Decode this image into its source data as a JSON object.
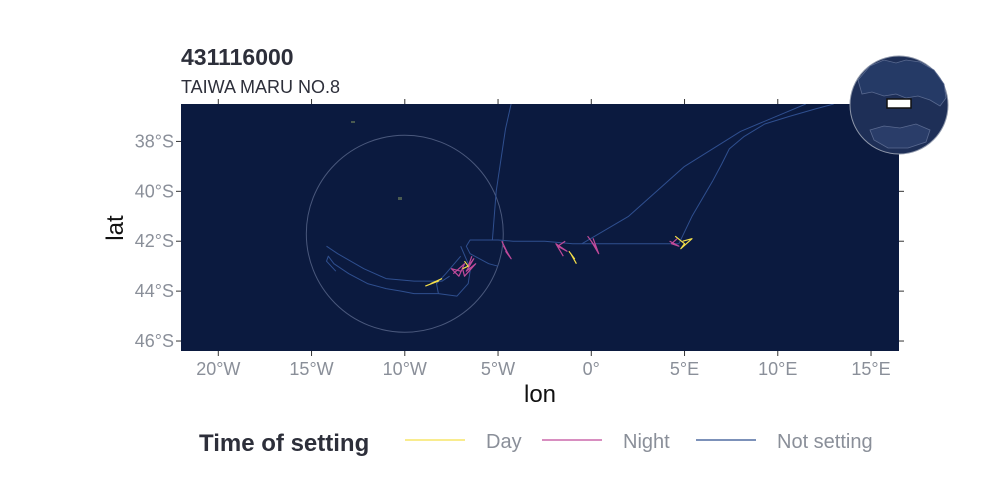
{
  "chart_data": {
    "type": "line",
    "title": "431116000",
    "subtitle": "TAIWA MARU NO.8",
    "xlabel": "lon",
    "ylabel": "lat",
    "xlim": [
      -22,
      16.5
    ],
    "ylim": [
      -46.4,
      -36.5
    ],
    "x_ticks": [
      {
        "value": -20,
        "label": "20°W"
      },
      {
        "value": -15,
        "label": "15°W"
      },
      {
        "value": -10,
        "label": "10°W"
      },
      {
        "value": -5,
        "label": "5°W"
      },
      {
        "value": 0,
        "label": "0°"
      },
      {
        "value": 5,
        "label": "5°E"
      },
      {
        "value": 10,
        "label": "10°E"
      },
      {
        "value": 15,
        "label": "15°E"
      }
    ],
    "y_ticks": [
      {
        "value": -38,
        "label": "38°S"
      },
      {
        "value": -40,
        "label": "40°S"
      },
      {
        "value": -42,
        "label": "42°S"
      },
      {
        "value": -44,
        "label": "44°S"
      },
      {
        "value": -46,
        "label": "46°S"
      }
    ],
    "background": "#0b1a3f",
    "grid": false,
    "legend": {
      "title": "Time of setting",
      "position": "bottom",
      "entries": [
        {
          "label": "Day",
          "color": "#f5e04a"
        },
        {
          "label": "Night",
          "color": "#c04a9a"
        },
        {
          "label": "Not setting",
          "color": "#2f4f8f"
        }
      ]
    },
    "eez_circle": {
      "center": [
        -10,
        -41.7
      ],
      "radius_deg": 4.8
    },
    "series": [
      {
        "name": "Not setting",
        "color": "#2f4f8f",
        "paths": [
          [
            [
              4.7,
              -42.1
            ],
            [
              5.4,
              -41.0
            ],
            [
              6.5,
              -39.6
            ],
            [
              7.0,
              -38.9
            ],
            [
              7.4,
              -38.3
            ],
            [
              8.2,
              -37.8
            ],
            [
              9.3,
              -37.3
            ],
            [
              10.6,
              -37.0
            ],
            [
              12.0,
              -36.7
            ],
            [
              13.0,
              -36.5
            ]
          ],
          [
            [
              4.7,
              -42.1
            ],
            [
              3.0,
              -42.1
            ],
            [
              1.2,
              -42.1
            ],
            [
              0.5,
              -42.1
            ],
            [
              -1.0,
              -42.1
            ],
            [
              -2.5,
              -42.0
            ],
            [
              -4.2,
              -42.0
            ],
            [
              -5.0,
              -41.95
            ],
            [
              -6.5,
              -41.95
            ],
            [
              -6.7,
              -42.2
            ],
            [
              -6.5,
              -42.5
            ],
            [
              -5.5,
              -42.9
            ],
            [
              -5.0,
              -43.0
            ]
          ],
          [
            [
              -5.3,
              -41.95
            ],
            [
              -5.1,
              -40.0
            ],
            [
              -4.6,
              -37.5
            ],
            [
              -4.3,
              -36.5
            ]
          ],
          [
            [
              -7.0,
              -42.2
            ],
            [
              -6.6,
              -42.9
            ],
            [
              -6.5,
              -43.2
            ],
            [
              -6.6,
              -43.7
            ],
            [
              -7.2,
              -44.2
            ],
            [
              -8.2,
              -44.1
            ],
            [
              -9.5,
              -44.1
            ],
            [
              -10.2,
              -44.0
            ],
            [
              -11.0,
              -43.9
            ],
            [
              -12.0,
              -43.7
            ],
            [
              -13.0,
              -43.3
            ],
            [
              -13.8,
              -42.9
            ],
            [
              -14.1,
              -42.6
            ],
            [
              -14.2,
              -42.8
            ],
            [
              -13.7,
              -43.2
            ]
          ],
          [
            [
              -14.2,
              -42.2
            ],
            [
              -13.6,
              -42.5
            ],
            [
              -12.2,
              -43.1
            ],
            [
              -11.0,
              -43.5
            ],
            [
              -9.5,
              -43.6
            ],
            [
              -8.0,
              -43.6
            ],
            [
              -7.6,
              -43.4
            ]
          ],
          [
            [
              -7.0,
              -42.6
            ],
            [
              -7.8,
              -43.3
            ],
            [
              -8.3,
              -43.7
            ],
            [
              -8.2,
              -44.1
            ]
          ],
          [
            [
              -0.5,
              -42.1
            ],
            [
              2.0,
              -41.0
            ],
            [
              5.0,
              -39.0
            ],
            [
              8.0,
              -37.6
            ],
            [
              11.5,
              -36.5
            ]
          ]
        ]
      },
      {
        "name": "Night",
        "color": "#c04a9a",
        "paths": [
          [
            [
              -6.4,
              -42.6
            ],
            [
              -6.6,
              -43.0
            ],
            [
              -6.3,
              -42.7
            ],
            [
              -6.7,
              -43.2
            ],
            [
              -6.2,
              -42.9
            ],
            [
              -6.8,
              -43.4
            ],
            [
              -6.9,
              -43.1
            ]
          ],
          [
            [
              -7.0,
              -43.2
            ],
            [
              -7.5,
              -43.1
            ],
            [
              -7.1,
              -43.4
            ],
            [
              -6.8,
              -42.9
            ],
            [
              -7.4,
              -43.3
            ]
          ],
          [
            [
              -4.8,
              -42.0
            ],
            [
              -4.4,
              -42.6
            ],
            [
              -4.7,
              -42.2
            ],
            [
              -4.3,
              -42.7
            ],
            [
              -4.6,
              -42.4
            ]
          ],
          [
            [
              -1.4,
              -42.0
            ],
            [
              -1.8,
              -42.2
            ],
            [
              -1.3,
              -42.4
            ],
            [
              -1.9,
              -42.1
            ],
            [
              -1.5,
              -42.6
            ]
          ],
          [
            [
              -0.2,
              -41.8
            ],
            [
              0.3,
              -42.3
            ],
            [
              0.1,
              -41.9
            ],
            [
              0.4,
              -42.5
            ],
            [
              0.0,
              -42.0
            ]
          ],
          [
            [
              4.6,
              -41.9
            ],
            [
              4.3,
              -42.1
            ],
            [
              4.7,
              -42.2
            ],
            [
              4.2,
              -42.0
            ]
          ]
        ]
      },
      {
        "name": "Day",
        "color": "#f5e04a",
        "paths": [
          [
            [
              -8.0,
              -43.5
            ],
            [
              -8.6,
              -43.7
            ],
            [
              -8.2,
              -43.6
            ],
            [
              -8.9,
              -43.8
            ]
          ],
          [
            [
              -1.2,
              -42.4
            ],
            [
              -0.9,
              -42.7
            ],
            [
              -1.1,
              -42.5
            ],
            [
              -0.8,
              -42.9
            ]
          ],
          [
            [
              4.5,
              -41.8
            ],
            [
              5.0,
              -42.1
            ],
            [
              4.8,
              -42.3
            ],
            [
              5.4,
              -41.9
            ],
            [
              4.9,
              -42.0
            ]
          ],
          [
            [
              -6.8,
              -42.8
            ],
            [
              -6.6,
              -43.0
            ],
            [
              -6.9,
              -43.1
            ]
          ]
        ]
      }
    ]
  }
}
